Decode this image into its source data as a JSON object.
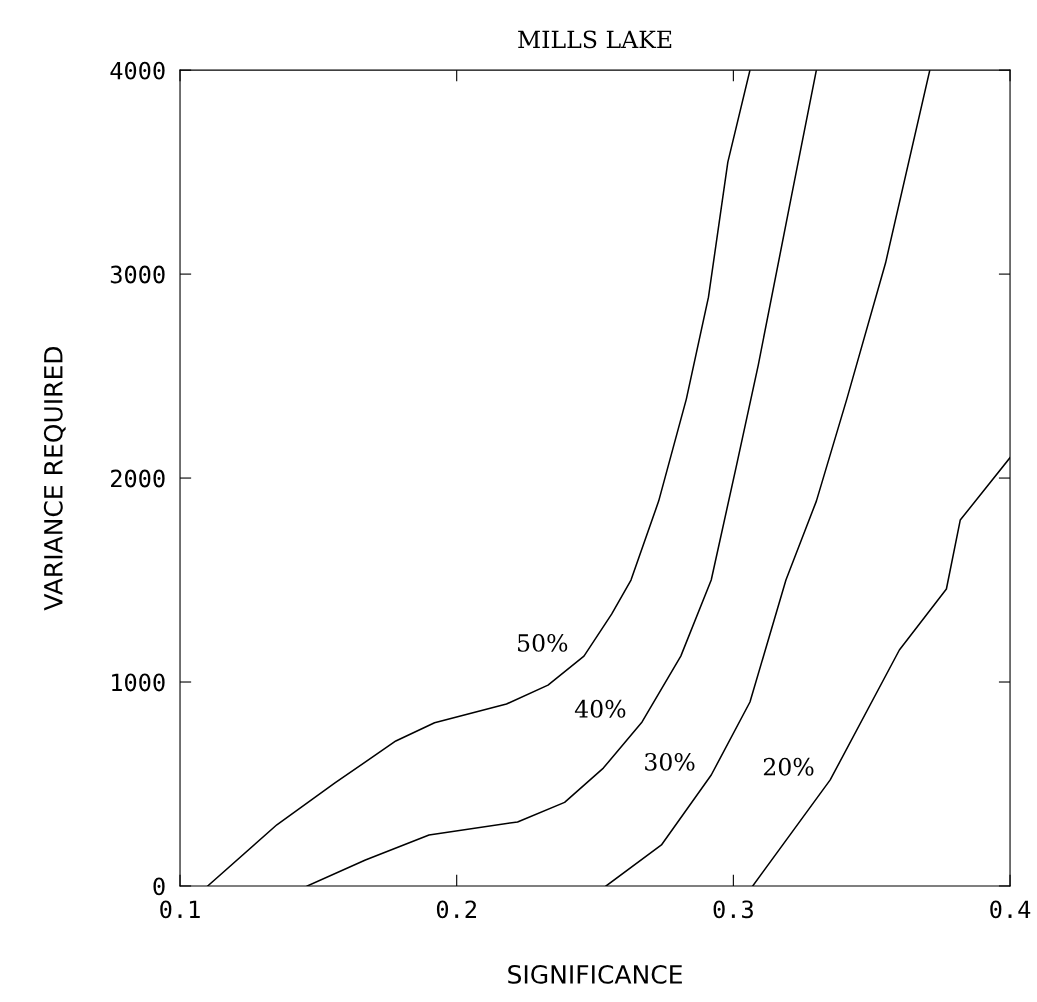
{
  "chart_data": {
    "type": "line",
    "title": "MILLS LAKE",
    "xlabel": "SIGNIFICANCE",
    "ylabel": "VARIANCE REQUIRED",
    "xlim": [
      0.1,
      0.4
    ],
    "ylim": [
      0,
      4000
    ],
    "xticks": [
      0.1,
      0.2,
      0.3,
      0.4
    ],
    "yticks": [
      0,
      1000,
      2000,
      3000,
      4000
    ],
    "grid": false,
    "legend": false,
    "marker": "none",
    "line_style": "solid",
    "series": [
      {
        "name": "50%",
        "color": "#000000",
        "x": [
          0.11,
          0.135,
          0.156,
          0.178,
          0.192,
          0.218,
          0.233,
          0.246,
          0.256,
          0.263,
          0.273,
          0.283,
          0.291,
          0.298,
          0.306
        ],
        "values": [
          0,
          300,
          505,
          711,
          800,
          892,
          985,
          1127,
          1333,
          1500,
          1887,
          2387,
          2887,
          3549,
          4000
        ]
      },
      {
        "name": "40%",
        "color": "#000000",
        "x": [
          0.146,
          0.167,
          0.19,
          0.222,
          0.239,
          0.253,
          0.267,
          0.281,
          0.292,
          0.301,
          0.309,
          0.321,
          0.33
        ],
        "values": [
          0,
          127,
          250,
          314,
          410,
          578,
          804,
          1127,
          1500,
          2054,
          2554,
          3382,
          4000
        ]
      },
      {
        "name": "30%",
        "color": "#000000",
        "x": [
          0.254,
          0.274,
          0.292,
          0.306,
          0.319,
          0.33,
          0.341,
          0.355,
          0.371
        ],
        "values": [
          0,
          201,
          544,
          902,
          1500,
          1887,
          2387,
          3054,
          4000
        ]
      },
      {
        "name": "20%",
        "color": "#000000",
        "x": [
          0.307,
          0.335,
          0.36,
          0.377,
          0.382,
          0.4
        ],
        "values": [
          0,
          520,
          1157,
          1456,
          1794,
          2100
        ]
      }
    ]
  }
}
